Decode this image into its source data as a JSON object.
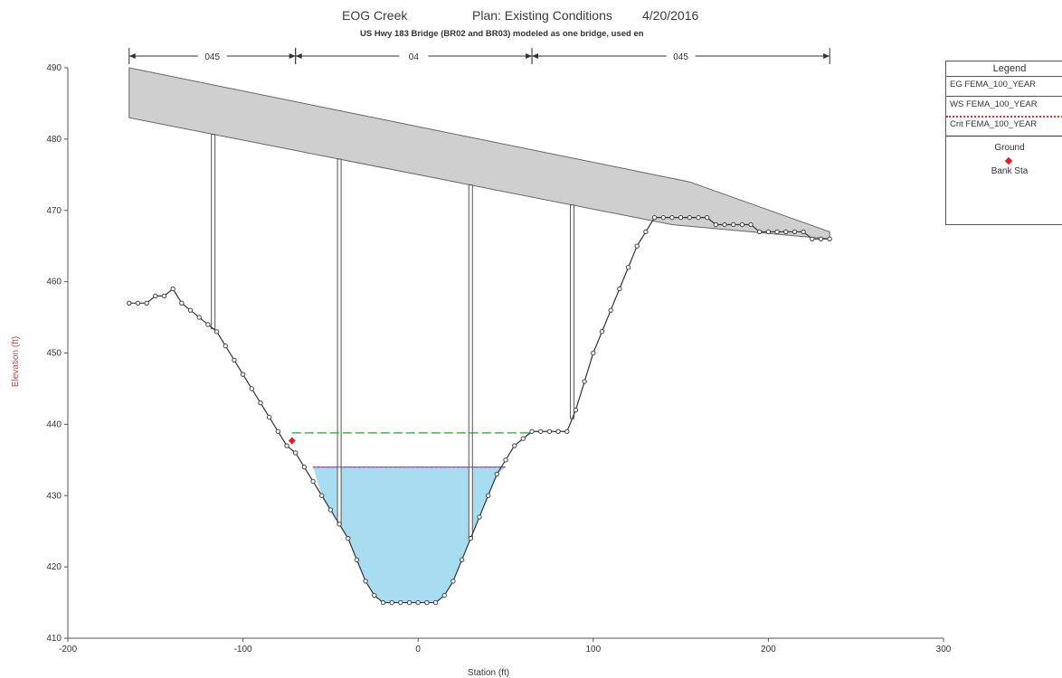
{
  "chart_data": {
    "type": "line",
    "title": "EOG Creek",
    "plan": "Plan: Existing Conditions",
    "date": "4/20/2016",
    "subtitle": "US Hwy 183 Bridge (BR02 and BR03) modeled as one bridge, used en",
    "xlabel": "Station (ft)",
    "ylabel": "Elevation (ft)",
    "xlim": [
      -200,
      300
    ],
    "ylim": [
      410,
      490
    ],
    "x_ticks": [
      "-200",
      "-100",
      "0",
      "100",
      "200",
      "300"
    ],
    "y_ticks": [
      "410",
      "420",
      "430",
      "440",
      "450",
      "460",
      "470",
      "480",
      "490"
    ],
    "regions": [
      {
        "label": "045",
        "from": -165,
        "to": -70
      },
      {
        "label": "04",
        "from": -70,
        "to": 65
      },
      {
        "label": "045",
        "from": 65,
        "to": 235
      }
    ],
    "ground": {
      "x": [
        -165,
        -160,
        -155,
        -150,
        -145,
        -140,
        -135,
        -130,
        -125,
        -120,
        -115,
        -110,
        -105,
        -100,
        -95,
        -90,
        -85,
        -80,
        -75,
        -70,
        -65,
        -60,
        -55,
        -50,
        -45,
        -40,
        -35,
        -30,
        -25,
        -20,
        -15,
        -10,
        -5,
        0,
        5,
        10,
        15,
        20,
        25,
        30,
        35,
        40,
        45,
        50,
        55,
        60,
        65,
        70,
        75,
        80,
        85,
        90,
        95,
        100,
        105,
        110,
        115,
        120,
        125,
        130,
        135,
        140,
        145,
        150,
        155,
        160,
        165,
        170,
        175,
        180,
        185,
        190,
        195,
        200,
        205,
        210,
        215,
        220,
        225,
        230,
        235
      ],
      "y": [
        457,
        457,
        457,
        458,
        458,
        459,
        457,
        456,
        455,
        454,
        453,
        451,
        449,
        447,
        445,
        443,
        441,
        439,
        437,
        436,
        434,
        432,
        430,
        428,
        426,
        424,
        421,
        418,
        416,
        415,
        415,
        415,
        415,
        415,
        415,
        415,
        416,
        418,
        421,
        424,
        427,
        430,
        433,
        435,
        437,
        438,
        439,
        439,
        439,
        439,
        439,
        442,
        446,
        450,
        453,
        456,
        459,
        462,
        465,
        467,
        469,
        469,
        469,
        469,
        469,
        469,
        469,
        468,
        468,
        468,
        468,
        468,
        467,
        467,
        467,
        467,
        467,
        467,
        466,
        466,
        466
      ]
    },
    "deck_top": {
      "x": [
        -165,
        155,
        235
      ],
      "y": [
        490,
        474,
        467
      ]
    },
    "deck_bottom": {
      "x": [
        -165,
        145,
        235
      ],
      "y": [
        483,
        468,
        466
      ]
    },
    "piers": [
      -117,
      -45,
      30,
      88
    ],
    "series": [
      {
        "name": "EG FEMA_100_YEAR",
        "color": "#2ca02c",
        "elevation": 438.8,
        "x": [
          -72,
          65
        ]
      },
      {
        "name": "WS FEMA_100_YEAR",
        "color": "#1f5fd6",
        "elevation": 434,
        "x": [
          -60,
          50
        ]
      },
      {
        "name": "Crit FEMA_100_YEAR",
        "color": "#e03030",
        "elevation": 434,
        "x": [
          -60,
          50
        ]
      }
    ],
    "bank_station": {
      "x": -72,
      "y": 437.7
    },
    "legend": {
      "title": "Legend",
      "entries": [
        "EG FEMA_100_YEAR",
        "WS FEMA_100_YEAR",
        "Crit FEMA_100_YEAR",
        "Ground",
        "Bank Sta"
      ],
      "placement": "right"
    },
    "colors": {
      "water": "#a8dcf0",
      "deck": "#cfcfcf",
      "ground": "#333333",
      "bank": "#e02020"
    }
  }
}
